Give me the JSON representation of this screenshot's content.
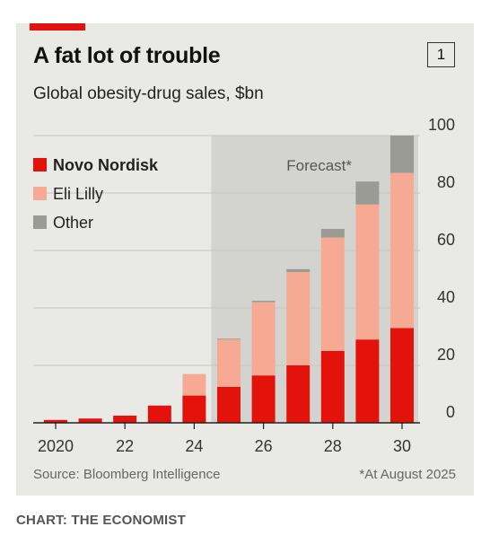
{
  "header": {
    "title": "A fat lot of trouble",
    "badge": "1",
    "subtitle": "Global obesity-drug sales, $bn"
  },
  "footer": {
    "source": "Source: Bloomberg Intelligence",
    "footnote": "*At August 2025",
    "credit": "CHART: THE ECONOMIST"
  },
  "chart_data": {
    "type": "bar",
    "stacked": true,
    "x": [
      2020,
      2021,
      2022,
      2023,
      2024,
      2025,
      2026,
      2027,
      2028,
      2029,
      2030
    ],
    "xticks": [
      {
        "value": 2020,
        "label": "2020"
      },
      {
        "value": 2022,
        "label": "22"
      },
      {
        "value": 2024,
        "label": "24"
      },
      {
        "value": 2026,
        "label": "26"
      },
      {
        "value": 2028,
        "label": "28"
      },
      {
        "value": 2030,
        "label": "30"
      }
    ],
    "yticks": [
      0,
      20,
      40,
      60,
      80,
      100
    ],
    "ylim": [
      0,
      100
    ],
    "grid": true,
    "series": [
      {
        "name": "Novo Nordisk",
        "color": "#e3120b",
        "values": [
          1,
          1.5,
          2.5,
          6,
          9.5,
          12.5,
          16.5,
          20,
          25,
          29,
          33
        ]
      },
      {
        "name": "Eli Lilly",
        "color": "#f6a993",
        "values": [
          0,
          0,
          0,
          0,
          7.5,
          16.5,
          25.5,
          32.5,
          39.5,
          47,
          54
        ]
      },
      {
        "name": "Other",
        "color": "#9a9b94",
        "values": [
          0,
          0,
          0,
          0,
          0,
          0.3,
          0.5,
          1,
          3,
          8,
          13
        ]
      }
    ],
    "forecast": {
      "label": "Forecast*",
      "from": 2025,
      "to": 2030
    },
    "legend_position": "top-left"
  }
}
